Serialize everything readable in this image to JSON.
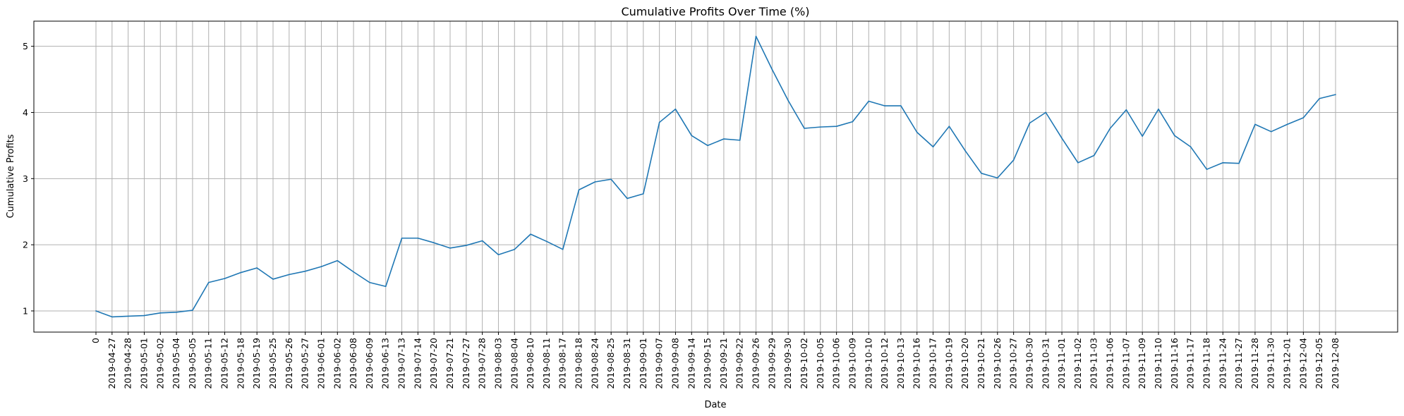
{
  "chart_data": {
    "type": "line",
    "title": "Cumulative Profits Over Time (%)",
    "xlabel": "Date",
    "ylabel": "Cumulative Profits",
    "grid": true,
    "ylim": [
      0.68,
      5.38
    ],
    "yticks": [
      "1",
      "2",
      "3",
      "4",
      "5"
    ],
    "line_color": "#1f77b4",
    "categories": [
      "0",
      "2019-04-27",
      "2019-04-28",
      "2019-05-01",
      "2019-05-02",
      "2019-05-04",
      "2019-05-05",
      "2019-05-11",
      "2019-05-12",
      "2019-05-18",
      "2019-05-19",
      "2019-05-25",
      "2019-05-26",
      "2019-05-27",
      "2019-06-01",
      "2019-06-02",
      "2019-06-08",
      "2019-06-09",
      "2019-06-13",
      "2019-07-13",
      "2019-07-14",
      "2019-07-20",
      "2019-07-21",
      "2019-07-27",
      "2019-07-28",
      "2019-08-03",
      "2019-08-04",
      "2019-08-10",
      "2019-08-11",
      "2019-08-17",
      "2019-08-18",
      "2019-08-24",
      "2019-08-25",
      "2019-08-31",
      "2019-09-01",
      "2019-09-07",
      "2019-09-08",
      "2019-09-14",
      "2019-09-15",
      "2019-09-21",
      "2019-09-22",
      "2019-09-26",
      "2019-09-29",
      "2019-09-30",
      "2019-10-02",
      "2019-10-05",
      "2019-10-06",
      "2019-10-09",
      "2019-10-10",
      "2019-10-12",
      "2019-10-13",
      "2019-10-16",
      "2019-10-17",
      "2019-10-19",
      "2019-10-20",
      "2019-10-21",
      "2019-10-26",
      "2019-10-27",
      "2019-10-30",
      "2019-10-31",
      "2019-11-01",
      "2019-11-02",
      "2019-11-03",
      "2019-11-06",
      "2019-11-07",
      "2019-11-09",
      "2019-11-10",
      "2019-11-16",
      "2019-11-17",
      "2019-11-18",
      "2019-11-24",
      "2019-11-27",
      "2019-11-28",
      "2019-11-30",
      "2019-12-01",
      "2019-12-04",
      "2019-12-05",
      "2019-12-08"
    ],
    "series": [
      {
        "values": [
          1.0,
          0.91,
          0.92,
          0.93,
          0.97,
          0.98,
          1.01,
          1.43,
          1.49,
          1.58,
          1.65,
          1.48,
          1.55,
          1.6,
          1.67,
          1.76,
          1.59,
          1.43,
          1.37,
          2.1,
          2.1,
          2.03,
          1.95,
          1.99,
          2.06,
          1.85,
          1.93,
          2.16,
          2.05,
          1.93,
          2.83,
          2.95,
          2.99,
          2.7,
          2.77,
          3.85,
          4.05,
          3.65,
          3.5,
          3.6,
          3.58,
          5.15,
          4.65,
          4.18,
          3.76,
          3.78,
          3.79,
          3.86,
          4.17,
          4.1,
          4.1,
          3.7,
          3.48,
          3.79,
          3.42,
          3.08,
          3.01,
          3.28,
          3.84,
          4.0,
          3.61,
          3.24,
          3.35,
          3.76,
          4.04,
          3.64,
          4.05,
          3.65,
          3.48,
          3.14,
          3.24,
          3.23,
          3.82,
          3.71,
          3.82,
          3.92,
          4.21,
          4.27
        ]
      }
    ]
  }
}
